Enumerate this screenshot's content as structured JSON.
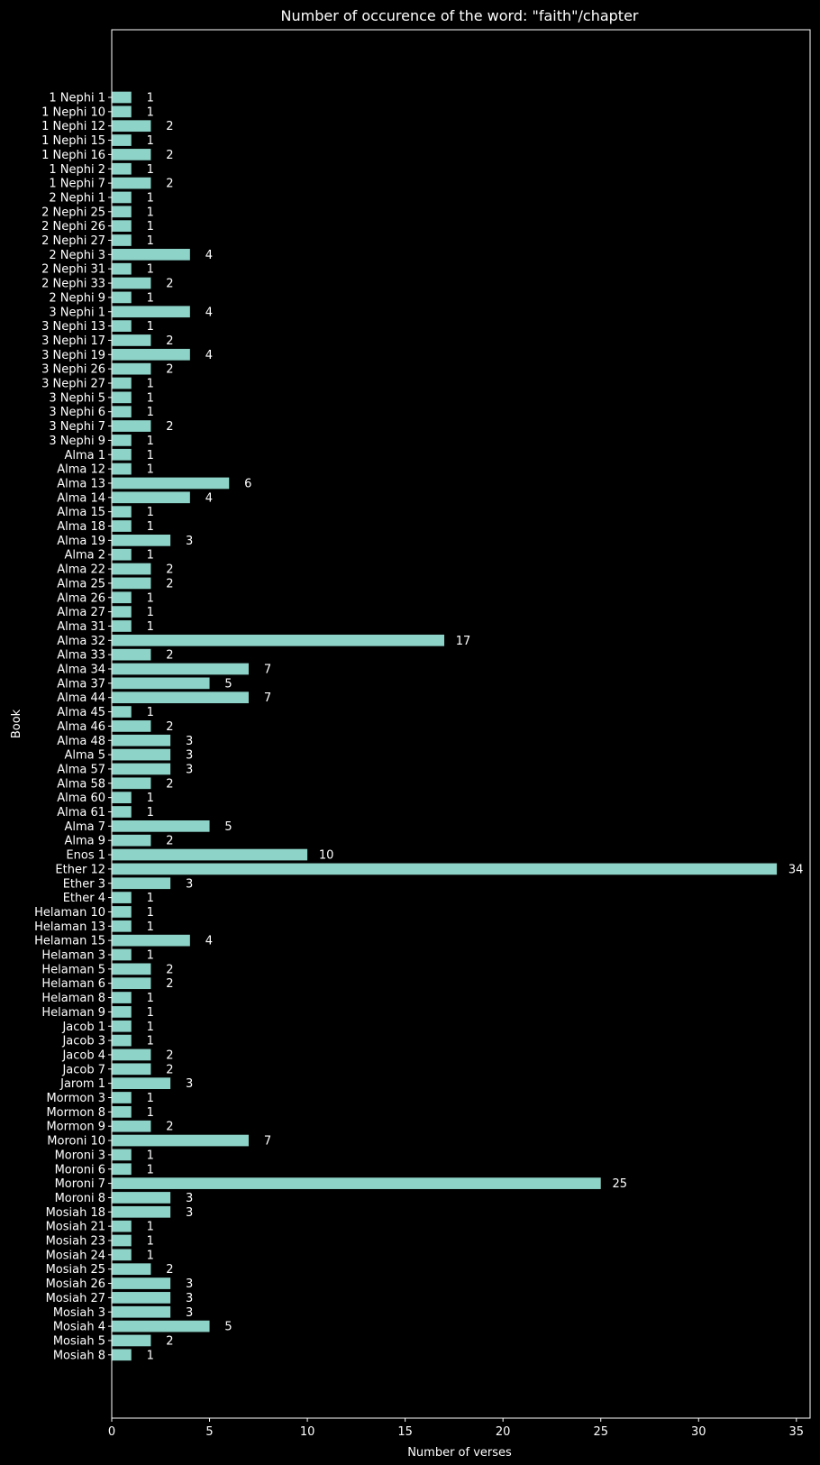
{
  "chart_data": {
    "type": "bar",
    "orientation": "horizontal",
    "title": "Number of occurence of the word: \"faith\"/chapter",
    "xlabel": "Number of verses",
    "ylabel": "Book",
    "xlim": [
      0,
      35.7
    ],
    "xticks": [
      0,
      5,
      10,
      15,
      20,
      25,
      30,
      35
    ],
    "grid": false,
    "bar_color": "#8dd3c7",
    "background": "#000000",
    "foreground": "#ffffff",
    "categories": [
      "1 Nephi 1",
      "1 Nephi 10",
      "1 Nephi 12",
      "1 Nephi 15",
      "1 Nephi 16",
      "1 Nephi 2",
      "1 Nephi 7",
      "2 Nephi 1",
      "2 Nephi 25",
      "2 Nephi 26",
      "2 Nephi 27",
      "2 Nephi 3",
      "2 Nephi 31",
      "2 Nephi 33",
      "2 Nephi 9",
      "3 Nephi 1",
      "3 Nephi 13",
      "3 Nephi 17",
      "3 Nephi 19",
      "3 Nephi 26",
      "3 Nephi 27",
      "3 Nephi 5",
      "3 Nephi 6",
      "3 Nephi 7",
      "3 Nephi 9",
      "Alma 1",
      "Alma 12",
      "Alma 13",
      "Alma 14",
      "Alma 15",
      "Alma 18",
      "Alma 19",
      "Alma 2",
      "Alma 22",
      "Alma 25",
      "Alma 26",
      "Alma 27",
      "Alma 31",
      "Alma 32",
      "Alma 33",
      "Alma 34",
      "Alma 37",
      "Alma 44",
      "Alma 45",
      "Alma 46",
      "Alma 48",
      "Alma 5",
      "Alma 57",
      "Alma 58",
      "Alma 60",
      "Alma 61",
      "Alma 7",
      "Alma 9",
      "Enos 1",
      "Ether 12",
      "Ether 3",
      "Ether 4",
      "Helaman 10",
      "Helaman 13",
      "Helaman 15",
      "Helaman 3",
      "Helaman 5",
      "Helaman 6",
      "Helaman 8",
      "Helaman 9",
      "Jacob 1",
      "Jacob 3",
      "Jacob 4",
      "Jacob 7",
      "Jarom 1",
      "Mormon 3",
      "Mormon 8",
      "Mormon 9",
      "Moroni 10",
      "Moroni 3",
      "Moroni 6",
      "Moroni 7",
      "Moroni 8",
      "Mosiah 18",
      "Mosiah 21",
      "Mosiah 23",
      "Mosiah 24",
      "Mosiah 25",
      "Mosiah 26",
      "Mosiah 27",
      "Mosiah 3",
      "Mosiah 4",
      "Mosiah 5",
      "Mosiah 8"
    ],
    "values": [
      1,
      1,
      2,
      1,
      2,
      1,
      2,
      1,
      1,
      1,
      1,
      4,
      1,
      2,
      1,
      4,
      1,
      2,
      4,
      2,
      1,
      1,
      1,
      2,
      1,
      1,
      1,
      6,
      4,
      1,
      1,
      3,
      1,
      2,
      2,
      1,
      1,
      1,
      17,
      2,
      7,
      5,
      7,
      1,
      2,
      3,
      3,
      3,
      2,
      1,
      1,
      5,
      2,
      10,
      34,
      3,
      1,
      1,
      1,
      4,
      1,
      2,
      2,
      1,
      1,
      1,
      1,
      2,
      2,
      3,
      1,
      1,
      2,
      7,
      1,
      1,
      25,
      3,
      3,
      1,
      1,
      1,
      2,
      3,
      3,
      3,
      5,
      2,
      1
    ]
  }
}
